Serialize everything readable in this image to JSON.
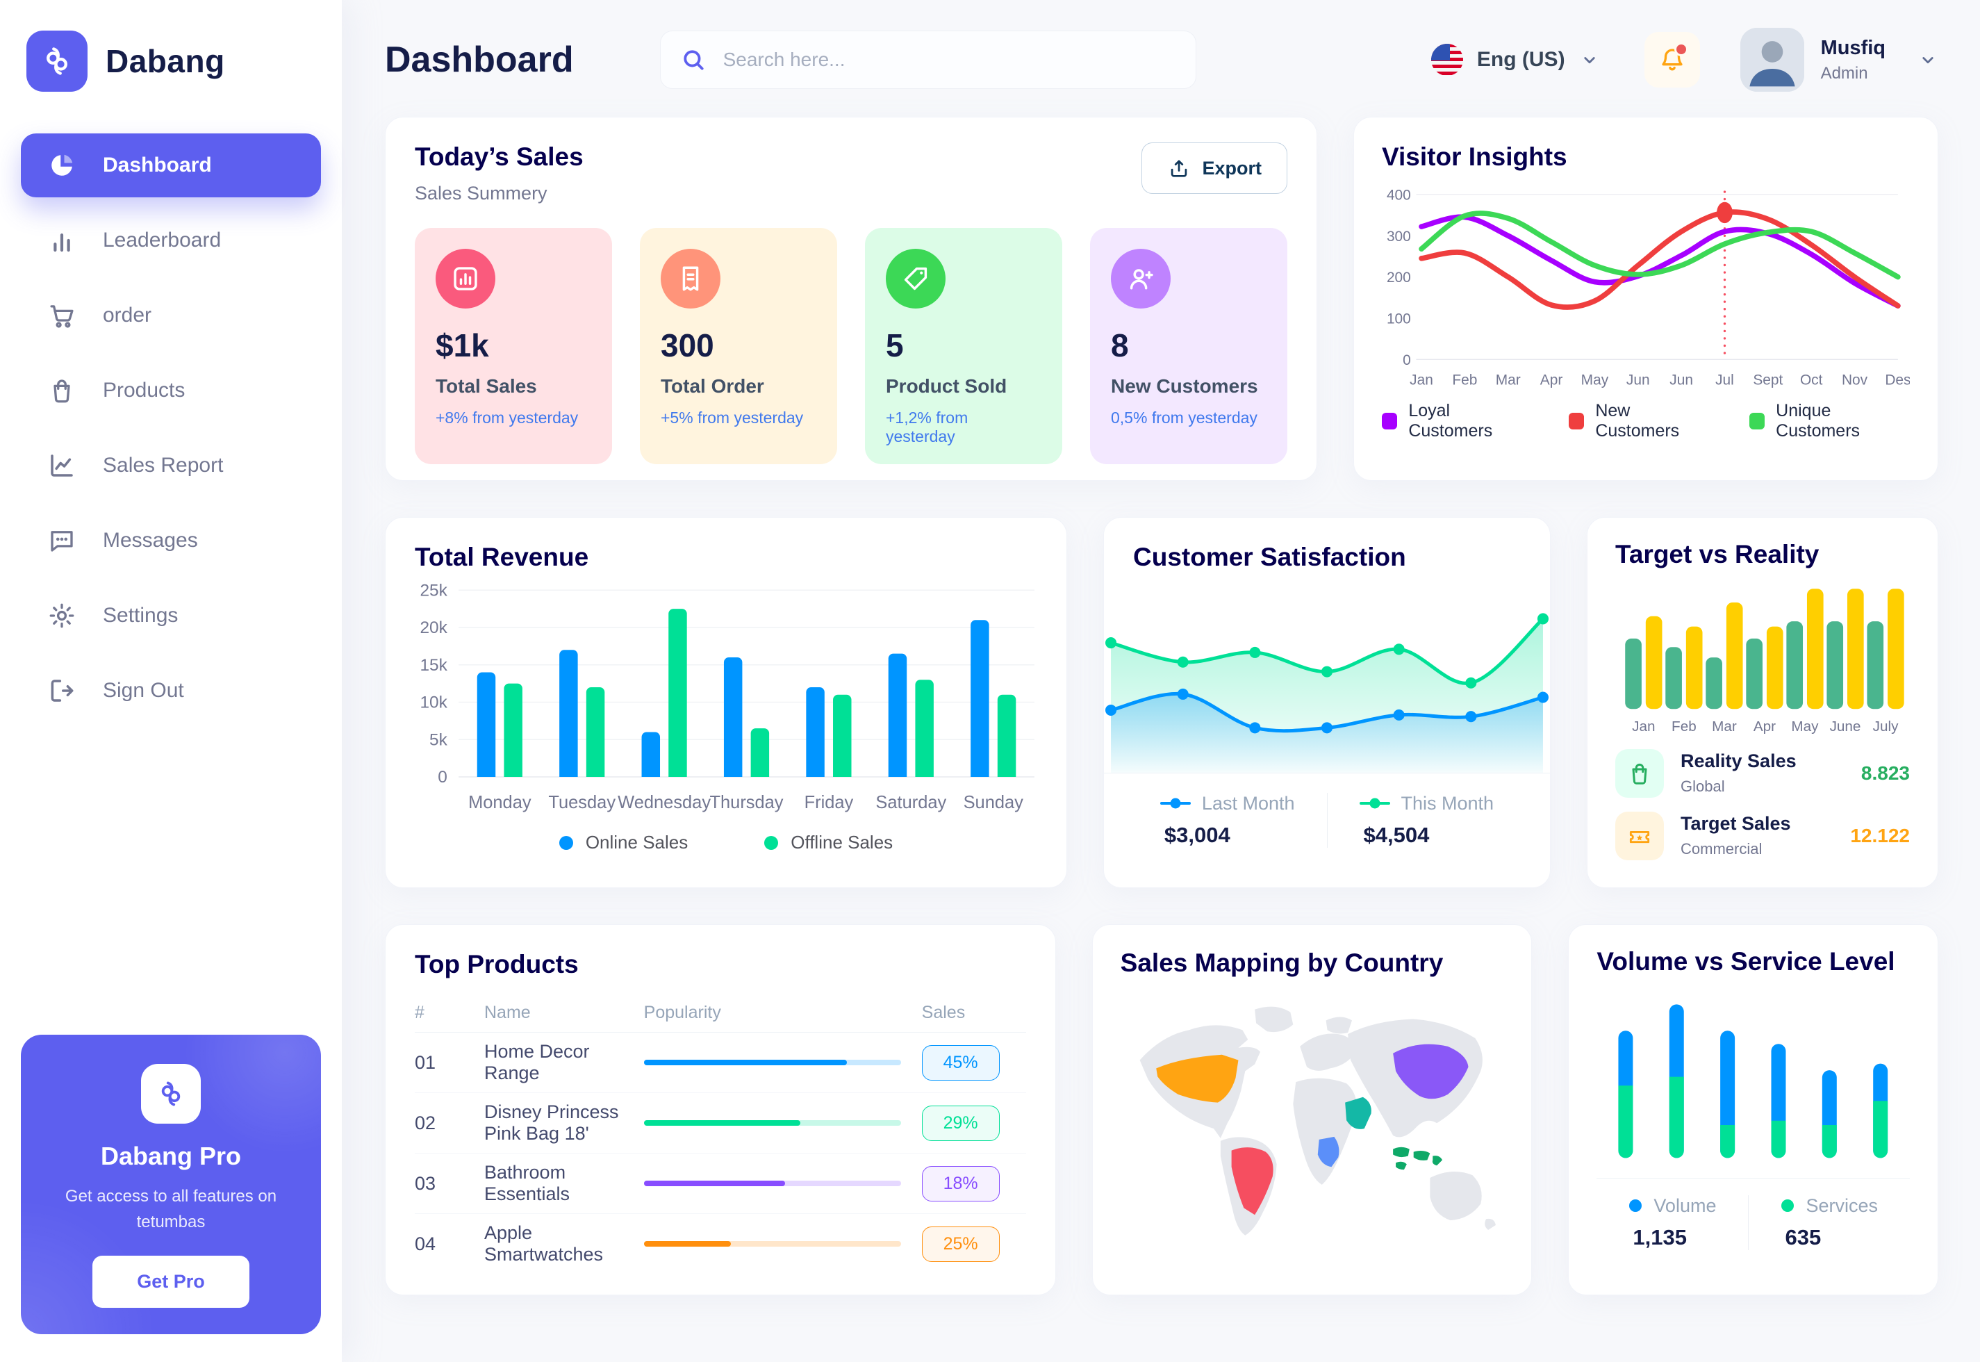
{
  "brand": {
    "name": "Dabang"
  },
  "sidebar": {
    "items": [
      {
        "label": "Dashboard",
        "icon": "pie-chart-icon",
        "active": true
      },
      {
        "label": "Leaderboard",
        "icon": "bar-chart-icon",
        "active": false
      },
      {
        "label": "order",
        "icon": "cart-icon",
        "active": false
      },
      {
        "label": "Products",
        "icon": "bag-icon",
        "active": false
      },
      {
        "label": "Sales Report",
        "icon": "line-chart-icon",
        "active": false
      },
      {
        "label": "Messages",
        "icon": "message-icon",
        "active": false
      },
      {
        "label": "Settings",
        "icon": "gear-icon",
        "active": false
      },
      {
        "label": "Sign Out",
        "icon": "sign-out-icon",
        "active": false
      }
    ],
    "pro_card": {
      "title": "Dabang Pro",
      "description": "Get access to all features on tetumbas",
      "button_label": "Get Pro"
    }
  },
  "header": {
    "title": "Dashboard",
    "search": {
      "placeholder": "Search here...",
      "icon": "search-icon"
    },
    "language": {
      "label": "Eng (US)",
      "icon": "us-flag-icon"
    },
    "notifications": {
      "icon": "bell-icon",
      "has_unread": true
    },
    "user": {
      "name": "Musfiq",
      "role": "Admin"
    }
  },
  "today_sales": {
    "title": "Today’s Sales",
    "subtitle": "Sales Summery",
    "export_label": "Export",
    "cards": [
      {
        "value": "$1k",
        "label": "Total Sales",
        "delta": "+8% from yesterday",
        "icon": "sales-chart-icon",
        "bg": "#FFE2E5",
        "icon_bg": "#FA5A7D",
        "delta_color": "#4079ED"
      },
      {
        "value": "300",
        "label": "Total Order",
        "delta": "+5% from yesterday",
        "icon": "order-receipt-icon",
        "bg": "#FFF4DE",
        "icon_bg": "#FF947A",
        "delta_color": "#4079ED"
      },
      {
        "value": "5",
        "label": "Product Sold",
        "delta": "+1,2% from yesterday",
        "icon": "tag-icon",
        "bg": "#DCFCE7",
        "icon_bg": "#3CD856",
        "delta_color": "#4079ED"
      },
      {
        "value": "8",
        "label": "New Customers",
        "delta": "0,5% from yesterday",
        "icon": "user-plus-icon",
        "bg": "#F3E8FF",
        "icon_bg": "#BF83FF",
        "delta_color": "#4079ED"
      }
    ]
  },
  "visitor_insights": {
    "title": "Visitor Insights",
    "chart_data": {
      "type": "line",
      "x": [
        "Jan",
        "Feb",
        "Mar",
        "Apr",
        "May",
        "Jun",
        "Jun",
        "Jul",
        "Sept",
        "Oct",
        "Nov",
        "Des"
      ],
      "ylim": [
        0,
        400
      ],
      "yticks": [
        0,
        100,
        200,
        300,
        400
      ],
      "series": [
        {
          "name": "Loyal Customers",
          "color": "#A700FF",
          "values": [
            322,
            345,
            300,
            240,
            188,
            202,
            252,
            310,
            305,
            255,
            185,
            130
          ]
        },
        {
          "name": "New Customers",
          "color": "#EF3E3E",
          "values": [
            245,
            258,
            200,
            132,
            142,
            228,
            310,
            356,
            340,
            278,
            200,
            130
          ]
        },
        {
          "name": "Unique Customers",
          "color": "#3CD856",
          "values": [
            268,
            348,
            342,
            285,
            228,
            206,
            228,
            280,
            308,
            310,
            258,
            200
          ]
        }
      ],
      "marker": {
        "series": "New Customers",
        "index": 7
      }
    }
  },
  "total_revenue": {
    "title": "Total Revenue",
    "chart_data": {
      "type": "bar",
      "categories": [
        "Monday",
        "Tuesday",
        "Wednesday",
        "Thursday",
        "Friday",
        "Saturday",
        "Sunday"
      ],
      "ylim": [
        0,
        25000
      ],
      "yticks": [
        0,
        5000,
        10000,
        15000,
        20000,
        25000
      ],
      "ytick_labels": [
        "0",
        "5k",
        "10k",
        "15k",
        "20k",
        "25k"
      ],
      "series": [
        {
          "name": "Online Sales",
          "color": "#0095FF",
          "values": [
            14000,
            17000,
            6000,
            16000,
            12000,
            16500,
            21000
          ]
        },
        {
          "name": "Offline Sales",
          "color": "#00E096",
          "values": [
            12500,
            12000,
            22500,
            6500,
            11000,
            13000,
            11000
          ]
        }
      ]
    }
  },
  "customer_satisfaction": {
    "title": "Customer Satisfaction",
    "chart_data": {
      "type": "area",
      "ylim": [
        0,
        10
      ],
      "series": [
        {
          "name": "Last Month",
          "color": "#0095FF",
          "total": "$3,004",
          "values": [
            3.2,
            4.2,
            2.1,
            2.1,
            2.9,
            2.8,
            4.0
          ]
        },
        {
          "name": "This Month",
          "color": "#00E096",
          "total": "$4,504",
          "values": [
            7.4,
            6.2,
            6.8,
            5.6,
            7.0,
            4.9,
            8.9
          ]
        }
      ]
    }
  },
  "target_vs_reality": {
    "title": "Target vs Reality",
    "chart_data": {
      "type": "bar",
      "categories": [
        "Jan",
        "Feb",
        "Mar",
        "Apr",
        "May",
        "June",
        "July"
      ],
      "ylim": [
        0,
        15
      ],
      "series": [
        {
          "name": "Reality Sales",
          "color": "#4AB58E",
          "values": [
            8.2,
            7.2,
            6.0,
            8.2,
            10.2,
            10.2,
            10.2
          ]
        },
        {
          "name": "Target Sales",
          "color": "#FFCF00",
          "values": [
            10.8,
            9.6,
            12.4,
            9.6,
            14,
            14,
            14
          ]
        }
      ]
    },
    "legend": [
      {
        "title": "Reality Sales",
        "subtitle": "Global",
        "value": "8.823",
        "value_color": "#27AE60",
        "icon": "bag-icon",
        "icon_bg": "#E2FFF3",
        "icon_color": "#27AE60"
      },
      {
        "title": "Target Sales",
        "subtitle": "Commercial",
        "value": "12.122",
        "value_color": "#FFA412",
        "icon": "ticket-icon",
        "icon_bg": "#FFF4DE",
        "icon_color": "#FFA412"
      }
    ]
  },
  "top_products": {
    "title": "Top Products",
    "columns": [
      "#",
      "Name",
      "Popularity",
      "Sales"
    ],
    "rows": [
      {
        "num": "01",
        "name": "Home Decor Range",
        "popularity_pct": 79,
        "color": "#0095FF",
        "sales": "45%"
      },
      {
        "num": "02",
        "name": "Disney Princess Pink Bag 18'",
        "popularity_pct": 61,
        "color": "#00E096",
        "sales": "29%"
      },
      {
        "num": "03",
        "name": "Bathroom Essentials",
        "popularity_pct": 55,
        "color": "#884DFF",
        "sales": "18%"
      },
      {
        "num": "04",
        "name": "Apple Smartwatches",
        "popularity_pct": 34,
        "color": "#FF8F0D",
        "sales": "25%"
      }
    ]
  },
  "sales_map": {
    "title": "Sales Mapping by Country",
    "land_color": "#E5E7EC",
    "highlights": [
      {
        "id": "us",
        "country": "United States",
        "color": "#FFA412"
      },
      {
        "id": "brazil",
        "country": "Brazil",
        "color": "#F64E60"
      },
      {
        "id": "china",
        "country": "China",
        "color": "#8A58F7"
      },
      {
        "id": "saudi",
        "country": "Saudi Arabia",
        "color": "#14B8A6"
      },
      {
        "id": "congo",
        "country": "DR Congo",
        "color": "#5B8FF9"
      },
      {
        "id": "indonesia",
        "country": "Indonesia",
        "color": "#0FA968"
      }
    ]
  },
  "volume_service": {
    "title": "Volume vs Service Level",
    "chart_data": {
      "type": "stacked-bar",
      "ylim": [
        0,
        75
      ],
      "series": [
        {
          "name": "Volume",
          "color": "#0095FF",
          "total": "1,135",
          "values": [
            25,
            33,
            43,
            35,
            25,
            17
          ]
        },
        {
          "name": "Services",
          "color": "#00E096",
          "total": "635",
          "values": [
            33,
            37,
            15,
            17,
            15,
            26
          ]
        }
      ]
    }
  }
}
